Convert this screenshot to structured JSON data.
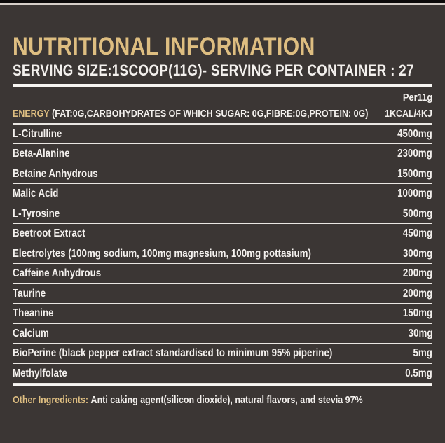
{
  "label": {
    "title": "NUTRITIONAL INFORMATION",
    "serving_line": "SERVING SIZE:1SCOOP(11G)- SERVING PER CONTAINER : 27",
    "per_serving_header": "Per11g",
    "energy": {
      "name": "ENERGY",
      "details": "(FAT:0G,CARBOHYDRATES OF WHICH SUGAR: 0G,FIBRE:0G,PROTEIN: 0G)",
      "value": "1KCAL/4KJ"
    },
    "rows": [
      {
        "name": "L-Citrulline",
        "value": "4500mg"
      },
      {
        "name": "Beta-Alanine",
        "value": "2300mg"
      },
      {
        "name": "Betaine Anhydrous",
        "value": "1500mg"
      },
      {
        "name": "Malic Acid",
        "value": "1000mg"
      },
      {
        "name": "L-Tyrosine",
        "value": "500mg"
      },
      {
        "name": "Beetroot Extract",
        "value": "450mg"
      },
      {
        "name": "Electrolytes (100mg sodium, 100mg magnesium, 100mg pottasium)",
        "value": "300mg"
      },
      {
        "name": "Caffeine Anhydrous",
        "value": "200mg"
      },
      {
        "name": "Taurine",
        "value": "200mg"
      },
      {
        "name": "Theanine",
        "value": "150mg"
      },
      {
        "name": "Calcium",
        "value": "30mg"
      },
      {
        "name": "BioPerine (black pepper extract standardised to minimum 95% piperine)",
        "value": "5mg"
      },
      {
        "name": "Methylfolate",
        "value": "0.5mg"
      }
    ],
    "other_ingredients": {
      "label": "Other Ingredients:",
      "text": "Anti caking agent(silicon dioxide), natural flavors, and stevia 97%"
    },
    "colors": {
      "background": "#3b3634",
      "gold": "#debe81",
      "text": "#f3f0ed",
      "divider": "#eae7e3",
      "top_bar": "#0c0a0a"
    }
  }
}
